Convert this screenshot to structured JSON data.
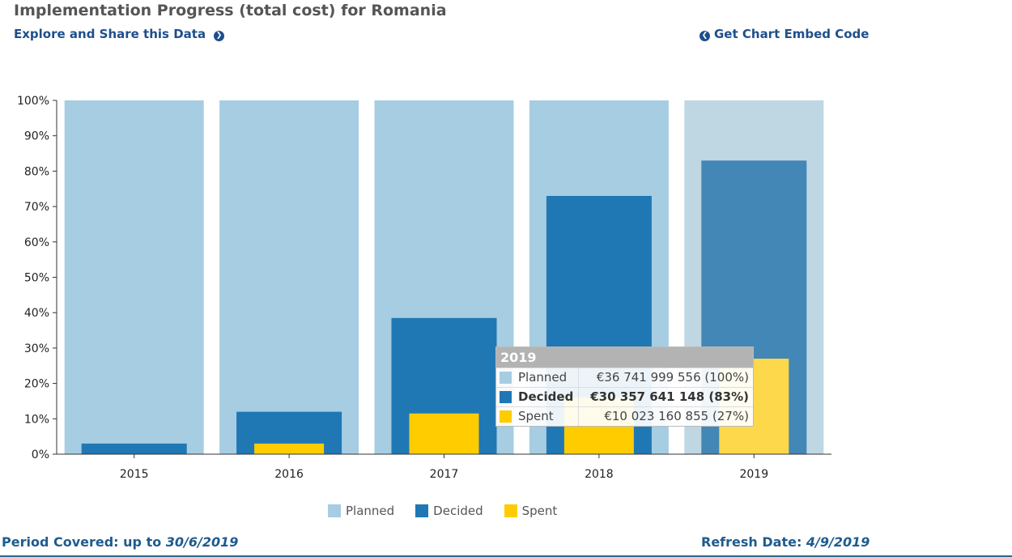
{
  "header": {
    "title": "Implementation Progress (total cost) for Romania",
    "explore_label": "Explore and Share this Data",
    "embed_label": "Get Chart Embed Code"
  },
  "colors": {
    "planned": "#a6cde2",
    "decided": "#1f78b4",
    "spent": "#ffcc00",
    "planned_hover": "#bed7e3",
    "decided_hover": "#4387b6",
    "spent_hover": "#fdd84a"
  },
  "chart_data": {
    "type": "bar",
    "title": "Implementation Progress (total cost) for Romania",
    "xlabel": "",
    "ylabel": "",
    "ylim": [
      0,
      100
    ],
    "yticks": [
      "0%",
      "10%",
      "20%",
      "30%",
      "40%",
      "50%",
      "60%",
      "70%",
      "80%",
      "90%",
      "100%"
    ],
    "categories": [
      "2015",
      "2016",
      "2017",
      "2018",
      "2019"
    ],
    "series": [
      {
        "name": "Planned",
        "values": [
          100,
          100,
          100,
          100,
          100
        ]
      },
      {
        "name": "Decided",
        "values": [
          3,
          12,
          38.5,
          73,
          83
        ]
      },
      {
        "name": "Spent",
        "values": [
          0,
          3,
          11.5,
          16,
          27
        ]
      }
    ],
    "legend": [
      "Planned",
      "Decided",
      "Spent"
    ],
    "legend_position": "bottom-center",
    "highlighted_category": "2019"
  },
  "tooltip": {
    "title": "2019",
    "rows": [
      {
        "name": "Planned",
        "value": "€36 741 999 556",
        "pct": "(100%)"
      },
      {
        "name": "Decided",
        "value": "€30 357 641 148",
        "pct": "(83%)"
      },
      {
        "name": "Spent",
        "value": "€10 023 160 855",
        "pct": "(27%)"
      }
    ]
  },
  "footer": {
    "period_label": "Period Covered: up to",
    "period_value": "30/6/2019",
    "refresh_label": "Refresh Date:",
    "refresh_value": "4/9/2019"
  }
}
